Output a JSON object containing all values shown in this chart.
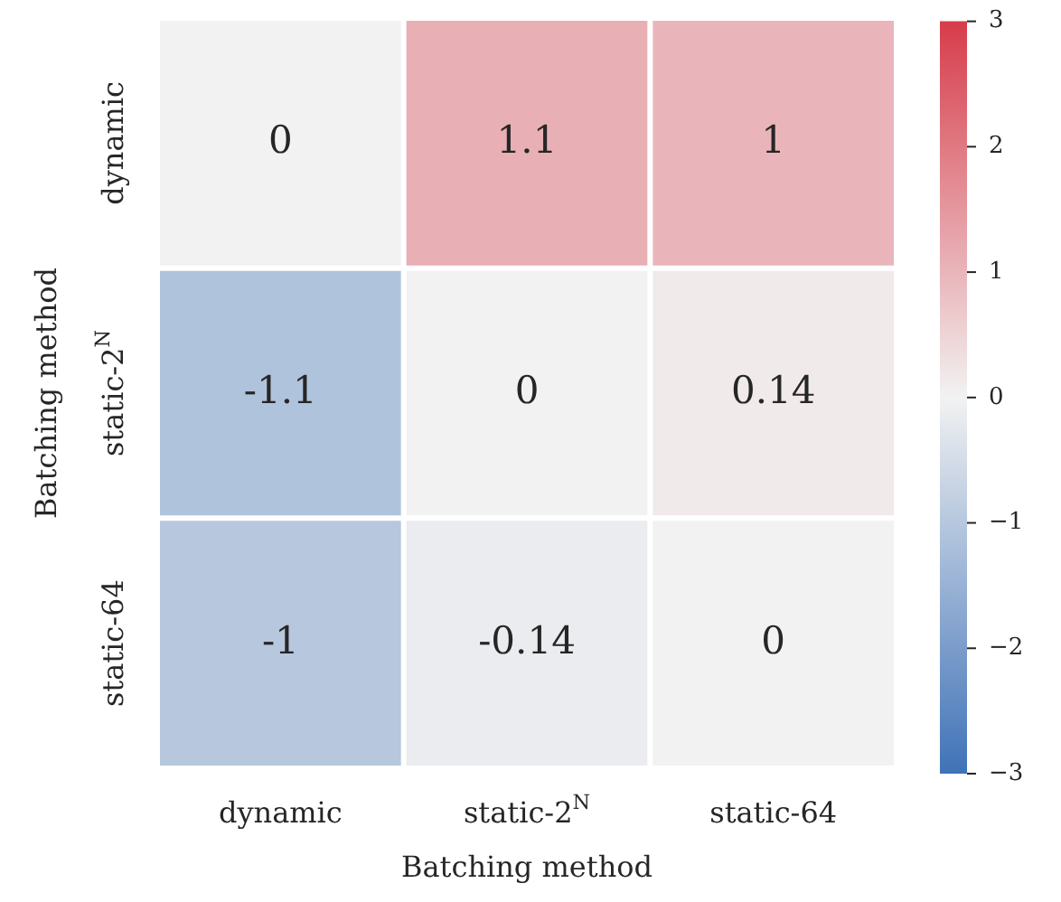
{
  "chart_data": {
    "type": "heatmap",
    "xlabel": "Batching method",
    "ylabel": "Batching method",
    "categories": [
      "dynamic",
      "static-2$^{N}$",
      "static-64"
    ],
    "y_categories": [
      "dynamic",
      "static-2$^{N}$",
      "static-64"
    ],
    "cells": [
      [
        0,
        1.1,
        1
      ],
      [
        -1.1,
        0,
        0.14
      ],
      [
        -1,
        -0.14,
        0
      ]
    ],
    "data_labels": true,
    "clim": [
      -3,
      3
    ],
    "cticks": [
      {
        "value": -3,
        "label": "−3"
      },
      {
        "value": -2,
        "label": "−2"
      },
      {
        "value": -1,
        "label": "−1"
      },
      0,
      1,
      2,
      3
    ]
  }
}
